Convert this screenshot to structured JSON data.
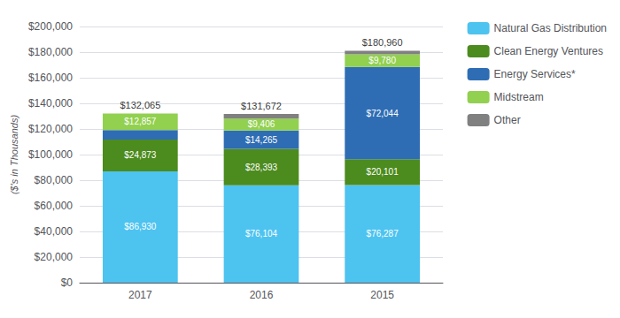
{
  "chart_data": {
    "type": "bar",
    "stacked": true,
    "categories": [
      "2017",
      "2016",
      "2015"
    ],
    "series": [
      {
        "name": "Natural Gas Distribution",
        "color": "#4DC3F0",
        "values": [
          86930,
          76104,
          76287
        ],
        "value_labels": [
          "$86,930",
          "$76,104",
          "$76,287"
        ]
      },
      {
        "name": "Clean Energy Ventures",
        "color": "#4C8B1E",
        "values": [
          24873,
          28393,
          20101
        ],
        "value_labels": [
          "$24,873",
          "$28,393",
          "$20,101"
        ]
      },
      {
        "name": "Energy Services*",
        "color": "#2E6DB4",
        "values": [
          7405,
          14265,
          72044
        ],
        "value_labels": [
          null,
          "$14,265",
          "$72,044"
        ]
      },
      {
        "name": "Midstream",
        "color": "#92D050",
        "values": [
          12857,
          9406,
          9780
        ],
        "value_labels": [
          "$12,857",
          "$9,406",
          "$9,780"
        ]
      },
      {
        "name": "Other",
        "color": "#808080",
        "values": [
          0,
          3504,
          2748
        ],
        "value_labels": [
          null,
          null,
          null
        ]
      }
    ],
    "data_labels": true,
    "ylabel": "($'s in Thousands)",
    "ylim": [
      0,
      200000
    ],
    "yticks": [
      {
        "value": 0,
        "label": "$0"
      },
      {
        "value": 20000,
        "label": "$20,000"
      },
      {
        "value": 40000,
        "label": "$40,000"
      },
      {
        "value": 60000,
        "label": "$60,000"
      },
      {
        "value": 80000,
        "label": "$80,000"
      },
      {
        "value": 100000,
        "label": "$100,000"
      },
      {
        "value": 120000,
        "label": "$120,000"
      },
      {
        "value": 140000,
        "label": "$140,000"
      },
      {
        "value": 160000,
        "label": "$160,000"
      },
      {
        "value": 180000,
        "label": "$180,000"
      },
      {
        "value": 200000,
        "label": "$200,000"
      }
    ],
    "grid": true,
    "legend": "right",
    "annotations": [
      {
        "x": "2017",
        "y": 132065,
        "text": "$132,065"
      },
      {
        "x": "2016",
        "y": 131672,
        "text": "$131,672"
      },
      {
        "x": "2015",
        "y": 180960,
        "text": "$180,960"
      }
    ]
  }
}
